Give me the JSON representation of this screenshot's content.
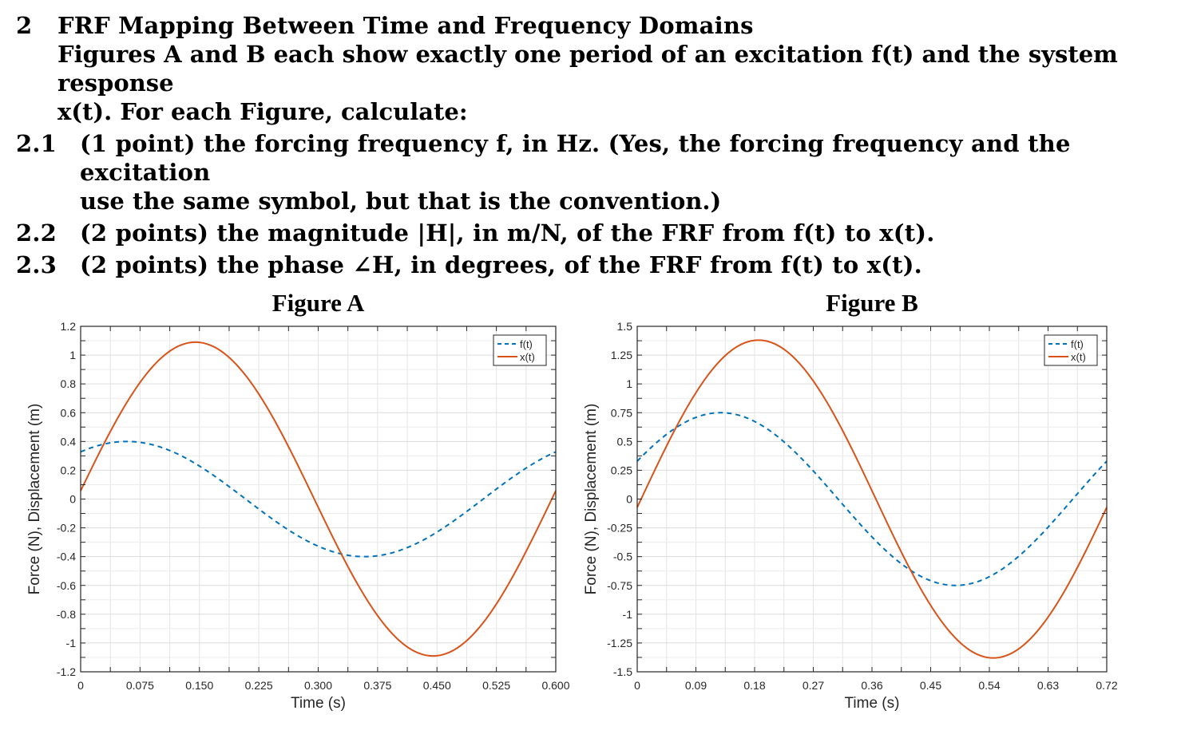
{
  "problem": {
    "number": "2",
    "title": "FRF Mapping Between Time and Frequency Domains",
    "intro_line1": "Figures A and B each show exactly one period of an excitation f(t) and the system response",
    "intro_line2": "x(t). For each Figure, calculate:",
    "items": [
      {
        "number": "2.1",
        "line1": "(1 point) the forcing frequency f, in Hz. (Yes, the forcing frequency and the excitation",
        "line2": "use the same symbol, but that is the convention.)"
      },
      {
        "number": "2.2",
        "line1": "(2 points) the magnitude |H|, in m/N, of the FRF from f(t) to x(t).",
        "line2": ""
      },
      {
        "number": "2.3",
        "line1": "(2 points) the phase ∠H, in degrees, of the FRF from f(t) to x(t).",
        "line2": ""
      }
    ]
  },
  "chart_data": [
    {
      "type": "line",
      "title": "Figure A",
      "xlabel": "Time (s)",
      "ylabel": "Force (N), Displacement (m)",
      "xlim": [
        0,
        0.6
      ],
      "ylim": [
        -1.2,
        1.2
      ],
      "xticks": [
        "0",
        "0.075",
        "0.150",
        "0.225",
        "0.300",
        "0.375",
        "0.450",
        "0.525",
        "0.600"
      ],
      "yticks": [
        "1.2",
        "1",
        "0.8",
        "0.6",
        "0.4",
        "0.2",
        "0",
        "-0.2",
        "-0.4",
        "-0.6",
        "-0.8",
        "-1",
        "-1.2"
      ],
      "grid": true,
      "legend": "top-right",
      "series": [
        {
          "name": "f(t)",
          "style": "dashed",
          "color": "#0072BD",
          "amplitude": 0.4,
          "phase_deg": 55,
          "period": 0.6
        },
        {
          "name": "x(t)",
          "style": "solid",
          "color": "#D95319",
          "amplitude": 1.09,
          "phase_deg": 3,
          "period": 0.6
        }
      ],
      "x": [
        0,
        0.075,
        0.15,
        0.225,
        0.3,
        0.375,
        0.45,
        0.525,
        0.6
      ]
    },
    {
      "type": "line",
      "title": "Figure B",
      "xlabel": "Time (s)",
      "ylabel": "Force (N), Displacement (m)",
      "xlim": [
        0,
        0.72
      ],
      "ylim": [
        -1.5,
        1.5
      ],
      "xticks": [
        "0",
        "0.09",
        "0.18",
        "0.27",
        "0.36",
        "0.45",
        "0.54",
        "0.63",
        "0.72"
      ],
      "yticks": [
        "1.5",
        "1.25",
        "1",
        "0.75",
        "0.5",
        "0.25",
        "0",
        "-0.25",
        "-0.5",
        "-0.75",
        "-1",
        "-1.25",
        "-1.5"
      ],
      "grid": true,
      "legend": "top-right",
      "series": [
        {
          "name": "f(t)",
          "style": "dashed",
          "color": "#0072BD",
          "amplitude": 0.75,
          "phase_deg": 26,
          "period": 0.72
        },
        {
          "name": "x(t)",
          "style": "solid",
          "color": "#D95319",
          "amplitude": 1.38,
          "phase_deg": -3,
          "period": 0.72
        }
      ],
      "x": [
        0,
        0.09,
        0.18,
        0.27,
        0.36,
        0.45,
        0.54,
        0.63,
        0.72
      ]
    }
  ]
}
